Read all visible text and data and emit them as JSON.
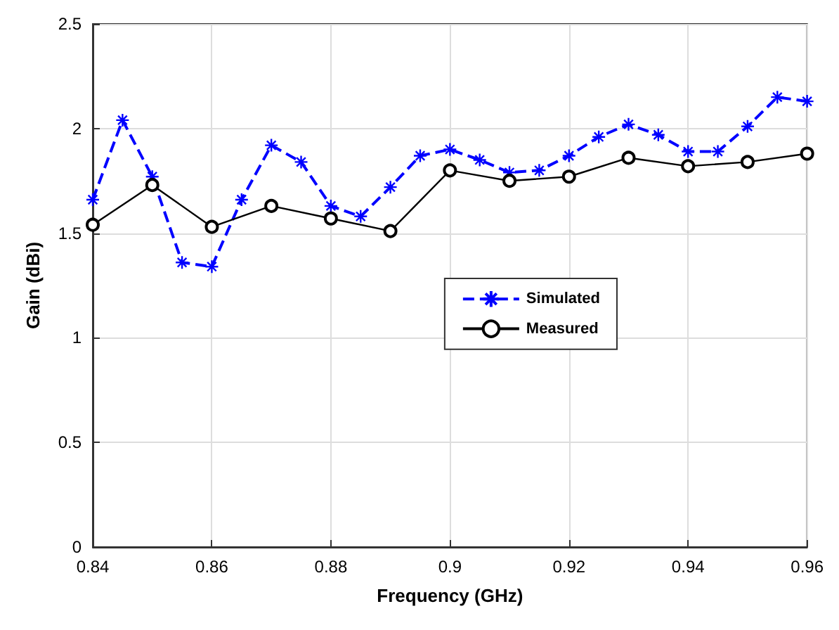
{
  "chart_data": {
    "type": "line",
    "xlabel": "Frequency (GHz)",
    "ylabel": "Gain (dBi)",
    "xlim": [
      0.84,
      0.96
    ],
    "xticks": [
      0.84,
      0.86,
      0.88,
      0.9,
      0.92,
      0.94,
      0.96
    ],
    "ylim": [
      0,
      2.5
    ],
    "yticks": [
      0,
      0.5,
      1,
      1.5,
      2,
      2.5
    ],
    "grid": true,
    "legend": "right",
    "series": [
      {
        "name": "Simulated",
        "color": "#0000ff",
        "marker": "cross",
        "line_style": "dashed",
        "x": [
          0.84,
          0.845,
          0.85,
          0.855,
          0.86,
          0.865,
          0.87,
          0.875,
          0.88,
          0.885,
          0.89,
          0.895,
          0.9,
          0.905,
          0.91,
          0.915,
          0.92,
          0.925,
          0.93,
          0.935,
          0.94,
          0.945,
          0.95,
          0.955,
          0.96
        ],
        "values": [
          1.66,
          2.04,
          1.77,
          1.36,
          1.34,
          1.66,
          1.92,
          1.84,
          1.63,
          1.58,
          1.72,
          1.87,
          1.9,
          1.85,
          1.79,
          1.8,
          1.87,
          1.96,
          2.02,
          1.97,
          1.89,
          1.89,
          2.01,
          2.15,
          2.13
        ]
      },
      {
        "name": "Measured",
        "color": "#000000",
        "marker": "circle",
        "line_style": "solid",
        "x": [
          0.84,
          0.85,
          0.86,
          0.87,
          0.88,
          0.89,
          0.9,
          0.91,
          0.92,
          0.93,
          0.94,
          0.95,
          0.96
        ],
        "values": [
          1.54,
          1.73,
          1.53,
          1.63,
          1.57,
          1.51,
          1.8,
          1.75,
          1.77,
          1.86,
          1.82,
          1.84,
          1.88
        ]
      }
    ]
  }
}
